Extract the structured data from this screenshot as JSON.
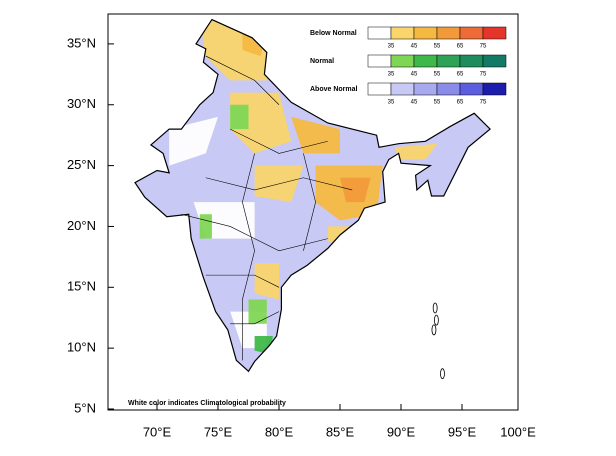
{
  "map": {
    "lat_ticks": [
      {
        "value": 35,
        "label": "35°N"
      },
      {
        "value": 30,
        "label": "30°N"
      },
      {
        "value": 25,
        "label": "25°N"
      },
      {
        "value": 20,
        "label": "20°N"
      },
      {
        "value": 15,
        "label": "15°N"
      },
      {
        "value": 10,
        "label": "10°N"
      },
      {
        "value": 5,
        "label": "5°N"
      }
    ],
    "lon_ticks": [
      {
        "value": 70,
        "label": "70°E"
      },
      {
        "value": 75,
        "label": "75°E"
      },
      {
        "value": 80,
        "label": "80°E"
      },
      {
        "value": 85,
        "label": "85°E"
      },
      {
        "value": 90,
        "label": "90°E"
      },
      {
        "value": 95,
        "label": "95°E"
      },
      {
        "value": 100,
        "label": "100°E"
      }
    ],
    "legend": [
      {
        "title": "Below Normal",
        "colors": [
          "#ffffff",
          "#f9d56b",
          "#f5b942",
          "#f29a3a",
          "#ee6b38",
          "#e5352a"
        ],
        "ticks": [
          35,
          45,
          55,
          65,
          75
        ]
      },
      {
        "title": "Normal",
        "colors": [
          "#ffffff",
          "#7fd655",
          "#3fb84a",
          "#2ea257",
          "#1f8c5d",
          "#137a66"
        ],
        "ticks": [
          35,
          45,
          55,
          65,
          75
        ]
      },
      {
        "title": "Above Normal",
        "colors": [
          "#ffffff",
          "#c9c9f5",
          "#a9a9ef",
          "#8b8be8",
          "#5d5de0",
          "#1c1cad"
        ],
        "ticks": [
          35,
          45,
          55,
          65,
          75
        ]
      }
    ],
    "note": "White color indicates Climatological probability"
  }
}
